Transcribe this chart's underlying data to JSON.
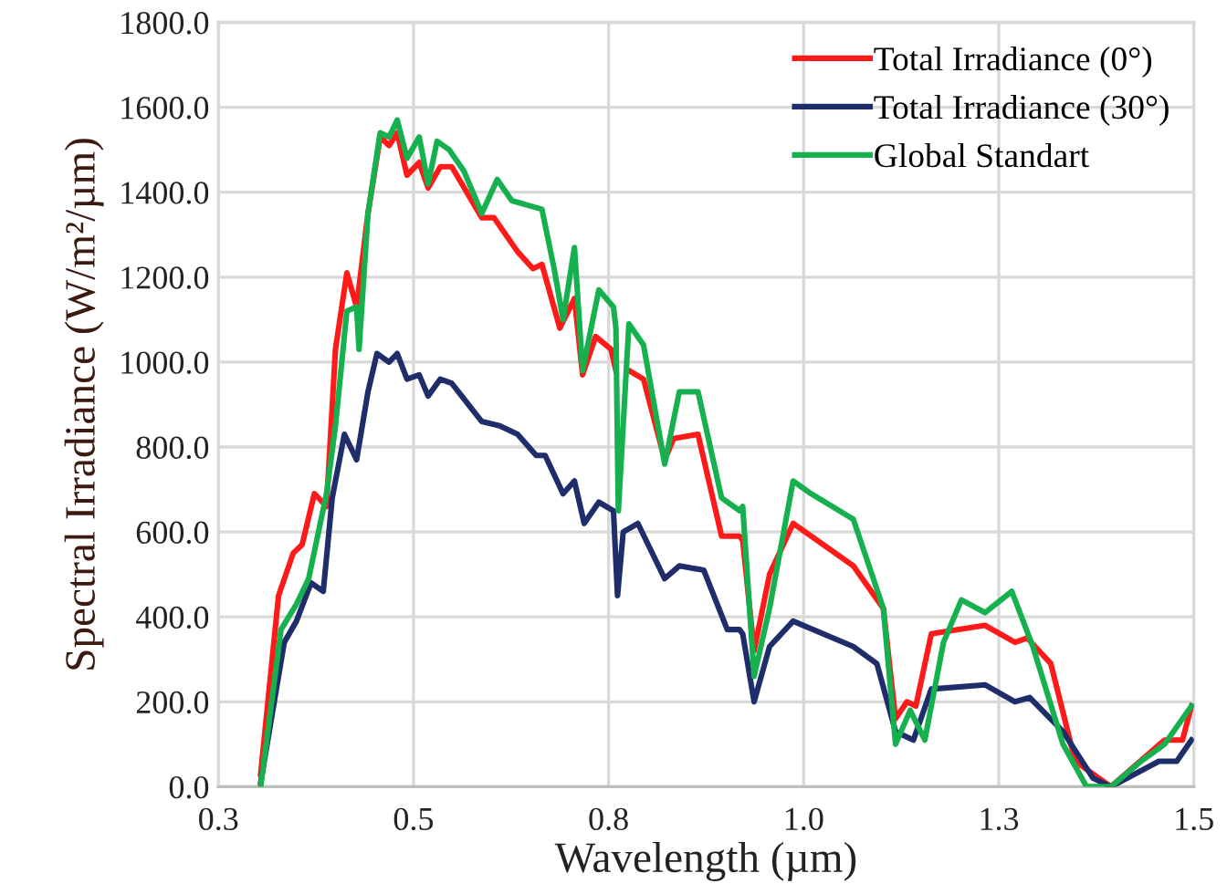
{
  "chart_data": {
    "type": "line",
    "xlabel": "Wavelength (µm)",
    "ylabel": "Spectral Irradiance (W/m²/µm)",
    "xlim": [
      0.3,
      1.5
    ],
    "ylim": [
      0,
      1800
    ],
    "xticks": [
      {
        "value": 0.3,
        "label": "0.3"
      },
      {
        "value": 0.54,
        "label": "0.5"
      },
      {
        "value": 0.78,
        "label": "0.8"
      },
      {
        "value": 1.02,
        "label": "1.0"
      },
      {
        "value": 1.26,
        "label": "1.3"
      },
      {
        "value": 1.5,
        "label": "1.5"
      }
    ],
    "yticks": [
      {
        "value": 0,
        "label": "0.0"
      },
      {
        "value": 200,
        "label": "200.0"
      },
      {
        "value": 400,
        "label": "400.0"
      },
      {
        "value": 600,
        "label": "600.0"
      },
      {
        "value": 800,
        "label": "800.0"
      },
      {
        "value": 1000,
        "label": "1000.0"
      },
      {
        "value": 1200,
        "label": "1200.0"
      },
      {
        "value": 1400,
        "label": "1400.0"
      },
      {
        "value": 1600,
        "label": "1600.0"
      },
      {
        "value": 1800,
        "label": "1800.0"
      }
    ],
    "grid": true,
    "legend": "top right",
    "marker": "none",
    "line_style": "solid",
    "series": [
      {
        "name": "Total Irradiance (0°)",
        "color": "#ff1a1a",
        "x": [
          0.352,
          0.374,
          0.392,
          0.403,
          0.418,
          0.433,
          0.444,
          0.458,
          0.47,
          0.484,
          0.499,
          0.51,
          0.52,
          0.532,
          0.547,
          0.558,
          0.573,
          0.587,
          0.624,
          0.639,
          0.668,
          0.687,
          0.698,
          0.72,
          0.738,
          0.748,
          0.764,
          0.783,
          0.789,
          0.792,
          0.805,
          0.823,
          0.849,
          0.86,
          0.89,
          0.919,
          0.941,
          0.945,
          0.959,
          0.978,
          1.007,
          1.081,
          1.118,
          1.133,
          1.147,
          1.158,
          1.177,
          1.243,
          1.28,
          1.295,
          1.324,
          1.354,
          1.398,
          1.464,
          1.486,
          1.497
        ],
        "values": [
          30,
          450,
          550,
          570,
          690,
          660,
          1030,
          1210,
          1130,
          1350,
          1530,
          1510,
          1540,
          1440,
          1470,
          1410,
          1460,
          1460,
          1340,
          1340,
          1260,
          1220,
          1230,
          1080,
          1150,
          970,
          1060,
          1030,
          980,
          null,
          980,
          960,
          770,
          820,
          830,
          590,
          590,
          580,
          320,
          500,
          620,
          520,
          420,
          160,
          200,
          190,
          360,
          380,
          340,
          350,
          290,
          60,
          0,
          110,
          110,
          190
        ]
      },
      {
        "name": "Total Irradiance (30°)",
        "color": "#1f2d6b",
        "x": [
          0.352,
          0.381,
          0.396,
          0.414,
          0.429,
          0.44,
          0.455,
          0.47,
          0.484,
          0.495,
          0.51,
          0.52,
          0.532,
          0.547,
          0.558,
          0.573,
          0.587,
          0.624,
          0.646,
          0.668,
          0.691,
          0.702,
          0.724,
          0.738,
          0.75,
          0.768,
          0.786,
          0.791,
          0.798,
          0.816,
          0.849,
          0.867,
          0.897,
          0.926,
          0.941,
          0.945,
          0.959,
          0.978,
          1.007,
          1.081,
          1.11,
          1.133,
          1.155,
          1.177,
          1.243,
          1.28,
          1.298,
          1.339,
          1.376,
          1.398,
          1.457,
          1.479,
          1.497
        ],
        "values": [
          10,
          340,
          390,
          480,
          460,
          680,
          830,
          770,
          930,
          1020,
          1000,
          1020,
          960,
          970,
          920,
          960,
          950,
          860,
          850,
          830,
          780,
          780,
          690,
          720,
          620,
          670,
          650,
          450,
          600,
          620,
          490,
          520,
          510,
          370,
          370,
          360,
          200,
          330,
          390,
          330,
          290,
          130,
          110,
          230,
          240,
          200,
          210,
          130,
          20,
          0,
          60,
          60,
          110
        ]
      },
      {
        "name": "Global Standart",
        "color": "#16b04e",
        "x": [
          0.352,
          0.377,
          0.396,
          0.411,
          0.433,
          0.444,
          0.458,
          0.47,
          0.473,
          0.484,
          0.499,
          0.51,
          0.52,
          0.532,
          0.547,
          0.558,
          0.569,
          0.584,
          0.602,
          0.624,
          0.643,
          0.661,
          0.698,
          0.713,
          0.724,
          0.738,
          0.748,
          0.768,
          0.786,
          0.789,
          0.792,
          0.805,
          0.823,
          0.849,
          0.867,
          0.89,
          0.919,
          0.941,
          0.945,
          0.959,
          0.978,
          1.007,
          1.029,
          1.081,
          1.118,
          1.133,
          1.151,
          1.169,
          1.192,
          1.214,
          1.243,
          1.276,
          1.302,
          1.339,
          1.368,
          1.398,
          1.435,
          1.464,
          1.497
        ],
        "values": [
          0,
          370,
          430,
          490,
          690,
          850,
          1120,
          1130,
          1030,
          1350,
          1540,
          1530,
          1570,
          1480,
          1530,
          1420,
          1520,
          1500,
          1450,
          1350,
          1430,
          1380,
          1360,
          1220,
          1100,
          1270,
          980,
          1170,
          1130,
          1080,
          650,
          1090,
          1040,
          760,
          930,
          930,
          680,
          650,
          660,
          260,
          420,
          720,
          690,
          630,
          420,
          100,
          180,
          110,
          340,
          440,
          410,
          460,
          330,
          100,
          0,
          0,
          60,
          100,
          190
        ]
      }
    ]
  }
}
